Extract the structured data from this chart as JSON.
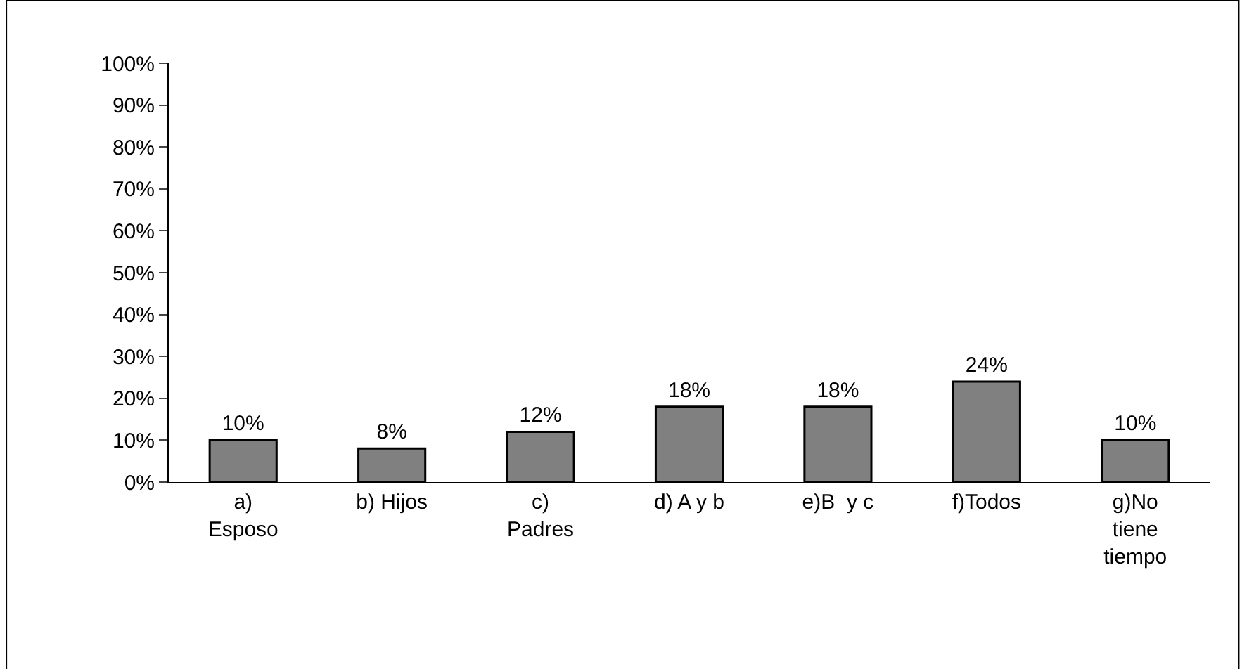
{
  "chart_data": {
    "type": "bar",
    "categories": [
      "a) Esposo",
      "b) Hijos",
      "c) Padres",
      "d) A y b",
      "e)B  y c",
      "f)Todos",
      "g)No tiene tiempo"
    ],
    "values": [
      10,
      8,
      12,
      18,
      18,
      24,
      10
    ],
    "value_labels": [
      "10%",
      "8%",
      "12%",
      "18%",
      "18%",
      "24%",
      "10%"
    ],
    "color": "#808080",
    "ylim": [
      0,
      100
    ],
    "yticks": [
      {
        "value": 0,
        "label": "0%"
      },
      {
        "value": 10,
        "label": "10%"
      },
      {
        "value": 20,
        "label": "20%"
      },
      {
        "value": 30,
        "label": "30%"
      },
      {
        "value": 40,
        "label": "40%"
      },
      {
        "value": 50,
        "label": "50%"
      },
      {
        "value": 60,
        "label": "60%"
      },
      {
        "value": 70,
        "label": "70%"
      },
      {
        "value": 80,
        "label": "80%"
      },
      {
        "value": 90,
        "label": "90%"
      },
      {
        "value": 100,
        "label": "100%"
      }
    ],
    "legend": false
  }
}
